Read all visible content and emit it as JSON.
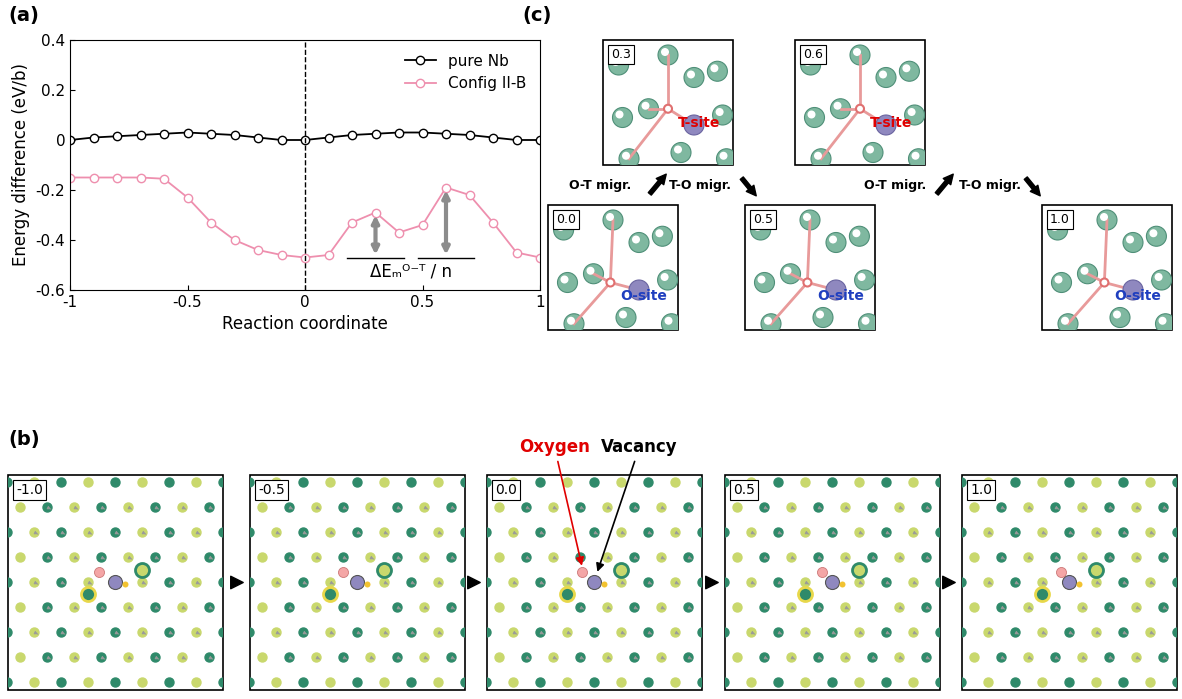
{
  "chart_data": {
    "type": "line",
    "title": "(a)",
    "x_label": "Reaction coordinate",
    "y_label": "Energy difference (eV/b)",
    "x": [
      -1.0,
      -0.9,
      -0.8,
      -0.7,
      -0.6,
      -0.5,
      -0.4,
      -0.3,
      -0.2,
      -0.1,
      0.0,
      0.1,
      0.2,
      0.3,
      0.4,
      0.5,
      0.6,
      0.7,
      0.8,
      0.9,
      1.0
    ],
    "series": [
      {
        "name": "pure Nb",
        "color": "#000000",
        "marker": "o",
        "line_style": "solid",
        "values": [
          0.0,
          0.01,
          0.015,
          0.02,
          0.025,
          0.03,
          0.025,
          0.02,
          0.01,
          0.0,
          0.0,
          0.01,
          0.02,
          0.025,
          0.03,
          0.03,
          0.025,
          0.02,
          0.01,
          0.0,
          0.0
        ]
      },
      {
        "name": "Config II-B",
        "color": "#ee8fae",
        "marker": "o",
        "line_style": "solid",
        "values": [
          -0.15,
          -0.15,
          -0.15,
          -0.15,
          -0.155,
          -0.23,
          -0.33,
          -0.4,
          -0.44,
          -0.46,
          -0.47,
          -0.46,
          -0.33,
          -0.29,
          -0.37,
          -0.34,
          -0.19,
          -0.22,
          -0.33,
          -0.45,
          -0.47
        ]
      }
    ],
    "reference_line_x": 0,
    "barriers": [
      {
        "x": 0.3,
        "from": -0.47,
        "to": -0.29
      },
      {
        "x": 0.6,
        "from": -0.47,
        "to": -0.19
      }
    ],
    "barrier_label": "ΔEₘᴼ⁻ᵀ / n",
    "xlim": [
      -1,
      1
    ],
    "ylim": [
      -0.6,
      0.4
    ],
    "xticks": [
      -1,
      -0.5,
      0,
      0.5,
      1
    ],
    "yticks": [
      -0.6,
      -0.4,
      -0.2,
      0,
      0.2,
      0.4
    ],
    "legend": "upper right",
    "grid": false
  },
  "panel_b": {
    "label": "(b)",
    "frames": [
      "-1.0",
      "-0.5",
      "0.0",
      "0.5",
      "1.0"
    ],
    "annotations": [
      {
        "text": "Oxygen",
        "color": "#e00000"
      },
      {
        "text": "Vacancy",
        "color": "#000000"
      }
    ]
  },
  "panel_c": {
    "label": "(c)",
    "frames": [
      {
        "label": "0.0",
        "site": "O-site"
      },
      {
        "label": "0.3",
        "site": "T-site"
      },
      {
        "label": "0.5",
        "site": "O-site"
      },
      {
        "label": "0.6",
        "site": "T-site"
      },
      {
        "label": "1.0",
        "site": "O-site"
      }
    ],
    "steps": [
      "O-T migr.",
      "T-O migr.",
      "O-T migr.",
      "T-O migr."
    ],
    "site_colors": {
      "O-site": "#1f3fbf",
      "T-site": "#e00000"
    }
  }
}
